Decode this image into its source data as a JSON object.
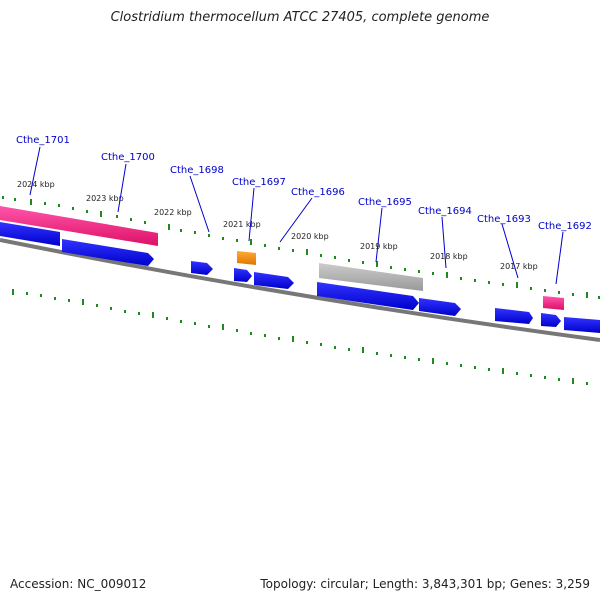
{
  "title": "Clostridium thermocellum ATCC 27405, complete genome",
  "footer": {
    "accession": "Accession: NC_009012",
    "topology": "Topology: circular; Length: 3,843,301 bp; Genes: 3,259"
  },
  "kbp_labels": [
    "2024 kbp",
    "2023 kbp",
    "2022 kbp",
    "2021 kbp",
    "2020 kbp",
    "2019 kbp",
    "2018 kbp",
    "2017 kbp"
  ],
  "gene_labels": [
    "Cthe_1701",
    "Cthe_1700",
    "Cthe_1698",
    "Cthe_1697",
    "Cthe_1696",
    "Cthe_1695",
    "Cthe_1694",
    "Cthe_1693",
    "Cthe_1692"
  ],
  "colors": {
    "cds": "#0000ee",
    "rrna": "#ee1177",
    "trna": "#ee8800",
    "pseudo": "#aaaaaa",
    "backbone": "#777777",
    "ticks": "#228822",
    "label": "#0000cc"
  }
}
